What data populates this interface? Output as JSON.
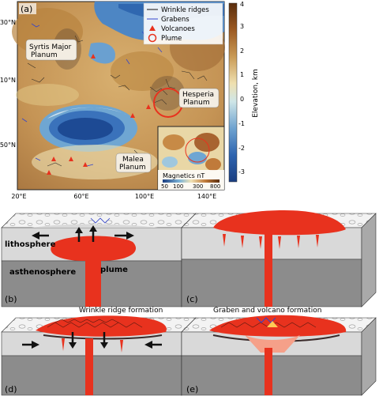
{
  "panel_a": {
    "label": "(a)",
    "legend": {
      "wrinkle": "Wrinkle ridges",
      "grabens": "Grabens",
      "volcanoes": "Volcanoes",
      "plume": "Plume"
    },
    "regions": {
      "syrtis_1": "Syrtis Major",
      "syrtis_2": "Planum",
      "hesperia_1": "Hesperia",
      "hesperia_2": "Planum",
      "malea_1": "Malea",
      "malea_2": "Planum"
    },
    "lat_ticks": [
      "30°N",
      "-10°N",
      "-50°N"
    ],
    "lon_ticks": [
      "20°E",
      "60°E",
      "100°E",
      "140°E"
    ],
    "colorbar": {
      "label": "Elevation, km",
      "ticks": [
        "4",
        "3",
        "2",
        "1",
        "0",
        "-1",
        "-2",
        "-3"
      ]
    },
    "inset": {
      "title": "Magnetics nT",
      "ticks": [
        "50",
        "100",
        "300",
        "800"
      ]
    }
  },
  "panel_b": {
    "label": "(b)",
    "lithosphere": "lithosphere",
    "asthenosphere": "asthenosphere",
    "plume": "plume"
  },
  "panel_c": {
    "label": "(c)"
  },
  "panel_d": {
    "label": "(d)",
    "title": "Wrinkle ridge formation"
  },
  "panel_e": {
    "label": "(e)",
    "title": "Graben and volcano formation"
  },
  "colors": {
    "plume": "#e8321e",
    "lithosphere": "#d9d9d9",
    "asthenosphere": "#8c8c8c",
    "crust_top": "#f4f4f4",
    "graben": "#3344cc"
  }
}
